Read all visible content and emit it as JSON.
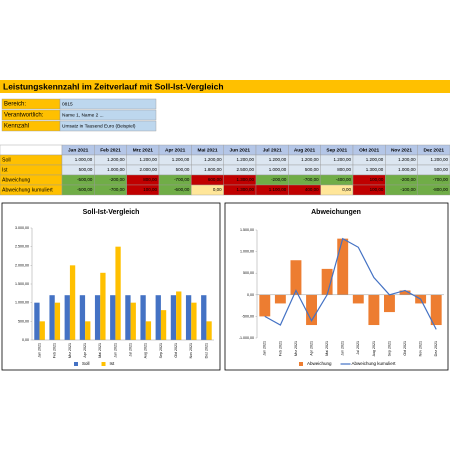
{
  "title": "Leistungskennzahl im Zeitverlauf mit Soll-Ist-Vergleich",
  "info": [
    {
      "label": "Bereich:",
      "value": "0815"
    },
    {
      "label": "Verantwortlich:",
      "value": "Name 1, Name 2 ..."
    },
    {
      "label": "Kennzahl",
      "value": "Umsatz in Tausend Euro (Beispiel)"
    }
  ],
  "table": {
    "columns": [
      "Jan 2021",
      "Feb 2021",
      "Mrz 2021",
      "Apr 2021",
      "Mai 2021",
      "Jun 2021",
      "Jul 2021",
      "Aug 2021",
      "Sep 2021",
      "Okt 2021",
      "Nov 2021",
      "Dez 2021"
    ],
    "rows": [
      {
        "label": "Soll",
        "cells": [
          "1.000,00",
          "1.200,00",
          "1.200,00",
          "1.200,00",
          "1.200,00",
          "1.200,00",
          "1.200,00",
          "1.200,00",
          "1.200,00",
          "1.200,00",
          "1.200,00",
          "1.200,00"
        ]
      },
      {
        "label": "Ist",
        "cells": [
          "500,00",
          "1.000,00",
          "2.000,00",
          "500,00",
          "1.800,00",
          "2.500,00",
          "1.000,00",
          "500,00",
          "800,00",
          "1.300,00",
          "1.000,00",
          "500,00"
        ]
      },
      {
        "label": "Abweichung",
        "cells": [
          "-500,00",
          "-200,00",
          "800,00",
          "-700,00",
          "600,00",
          "1.300,00",
          "-200,00",
          "-700,00",
          "-400,00",
          "100,00",
          "-200,00",
          "-700,00"
        ]
      },
      {
        "label": "Abweichung kumuliert",
        "cells": [
          "-500,00",
          "-700,00",
          "100,00",
          "-600,00",
          "0,00",
          "1.300,00",
          "1.100,00",
          "400,00",
          "0,00",
          "100,00",
          "-100,00",
          "-800,00"
        ]
      }
    ]
  },
  "chart_data": [
    {
      "type": "bar",
      "title": "Soll-Ist-Vergleich",
      "categories": [
        "Jan 2021",
        "Feb 2021",
        "Mrz 2021",
        "Apr 2021",
        "Mai 2021",
        "Jun 2021",
        "Jul 2021",
        "Aug 2021",
        "Sep 2021",
        "Okt 2021",
        "Nov 2021",
        "Dez 2021"
      ],
      "series": [
        {
          "name": "Soll",
          "color": "#4472c4",
          "values": [
            1000,
            1200,
            1200,
            1200,
            1200,
            1200,
            1200,
            1200,
            1200,
            1200,
            1200,
            1200
          ]
        },
        {
          "name": "Ist",
          "color": "#ffc000",
          "values": [
            500,
            1000,
            2000,
            500,
            1800,
            2500,
            1000,
            500,
            800,
            1300,
            1000,
            500
          ]
        }
      ],
      "ylim": [
        0,
        3000
      ],
      "yticks": [
        {
          "value": 0,
          "label": "0,00"
        },
        {
          "value": 500,
          "label": "500,00"
        },
        {
          "value": 1000,
          "label": "1.000,00"
        },
        {
          "value": 1500,
          "label": "1.500,00"
        },
        {
          "value": 2000,
          "label": "2.000,00"
        },
        {
          "value": 2500,
          "label": "2.500,00"
        },
        {
          "value": 3000,
          "label": "3.000,00"
        }
      ],
      "legend": "bottom"
    },
    {
      "type": "combo",
      "title": "Abweichungen",
      "categories": [
        "Jan 2021",
        "Feb 2021",
        "Mrz 2021",
        "Apr 2021",
        "Mai 2021",
        "Jun 2021",
        "Jul 2021",
        "Aug 2021",
        "Sep 2021",
        "Okt 2021",
        "Nov 2021",
        "Dez 2021"
      ],
      "series": [
        {
          "name": "Abweichung",
          "type": "bar",
          "color": "#ed7d31",
          "values": [
            -500,
            -200,
            800,
            -700,
            600,
            1300,
            -200,
            -700,
            -400,
            100,
            -200,
            -700
          ]
        },
        {
          "name": "Abweichung kumuliert",
          "type": "line",
          "color": "#4472c4",
          "values": [
            -500,
            -700,
            100,
            -600,
            0,
            1300,
            1100,
            400,
            0,
            100,
            -100,
            -800
          ]
        }
      ],
      "ylim": [
        -1000,
        1500
      ],
      "yticks": [
        {
          "value": -1000,
          "label": "-1.000,00"
        },
        {
          "value": -500,
          "label": "-500,00"
        },
        {
          "value": 0,
          "label": "0,00"
        },
        {
          "value": 500,
          "label": "500,00"
        },
        {
          "value": 1000,
          "label": "1.000,00"
        },
        {
          "value": 1500,
          "label": "1.500,00"
        }
      ],
      "legend": "bottom"
    }
  ]
}
